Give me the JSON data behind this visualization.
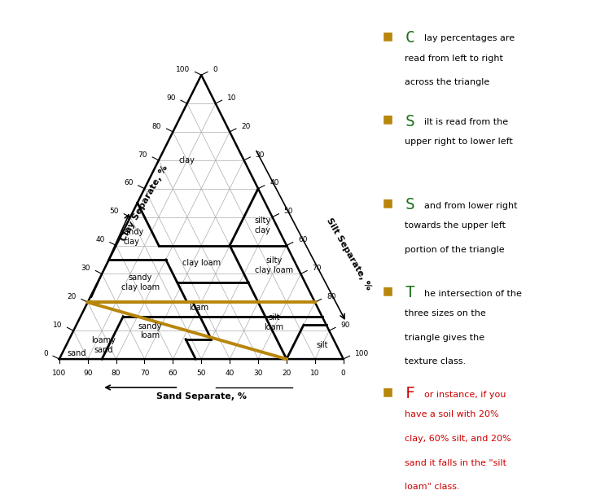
{
  "bg_color": "#ffffff",
  "grid_color": "#aaaaaa",
  "highlight_color": "#B8860B",
  "green_color": "#1a6e1a",
  "red_color": "#cc0000",
  "bullet_color": "#b8860b",
  "triangle_lw": 1.5,
  "grid_lw": 0.5,
  "boundary_lw": 2.0,
  "highlight_lw": 2.5,
  "texture_classes": [
    {
      "name": "clay",
      "clay": 70,
      "sand": 20,
      "fs": 7,
      "rot": 0
    },
    {
      "name": "silty\nclay",
      "clay": 47,
      "sand": 5,
      "fs": 7,
      "rot": 0
    },
    {
      "name": "sandy\nclay",
      "clay": 43,
      "sand": 53,
      "fs": 7,
      "rot": 0
    },
    {
      "name": "clay loam",
      "clay": 34,
      "sand": 33,
      "fs": 7,
      "rot": 0
    },
    {
      "name": "silty\nclay loam",
      "clay": 33,
      "sand": 8,
      "fs": 7,
      "rot": 0
    },
    {
      "name": "sandy\nclay loam",
      "clay": 27,
      "sand": 58,
      "fs": 7,
      "rot": 0
    },
    {
      "name": "loam",
      "clay": 18,
      "sand": 42,
      "fs": 7,
      "rot": 0
    },
    {
      "name": "silt\nloam",
      "clay": 13,
      "sand": 18,
      "fs": 7,
      "rot": 0
    },
    {
      "name": "sandy\nloam",
      "clay": 10,
      "sand": 63,
      "fs": 7,
      "rot": 0
    },
    {
      "name": "loamy\nsand",
      "clay": 5,
      "sand": 82,
      "fs": 7,
      "rot": 0
    },
    {
      "name": "sand",
      "clay": 2,
      "sand": 93,
      "fs": 7,
      "rot": 0
    },
    {
      "name": "silt",
      "clay": 5,
      "sand": 5,
      "fs": 7,
      "rot": 0
    }
  ],
  "usda_boundaries": [
    [
      [
        40,
        0
      ],
      [
        40,
        45
      ]
    ],
    [
      [
        40,
        45
      ],
      [
        55,
        45
      ]
    ],
    [
      [
        40,
        20
      ],
      [
        60,
        0
      ]
    ],
    [
      [
        27,
        20
      ],
      [
        40,
        20
      ]
    ],
    [
      [
        27,
        20
      ],
      [
        27,
        45
      ]
    ],
    [
      [
        27,
        45
      ],
      [
        35,
        45
      ]
    ],
    [
      [
        35,
        45
      ],
      [
        35,
        65
      ]
    ],
    [
      [
        20,
        45
      ],
      [
        20,
        80
      ]
    ],
    [
      [
        20,
        45
      ],
      [
        27,
        45
      ]
    ],
    [
      [
        12,
        0
      ],
      [
        12,
        8
      ]
    ],
    [
      [
        0,
        20
      ],
      [
        12,
        8
      ]
    ],
    [
      [
        0,
        20
      ],
      [
        27,
        20
      ]
    ],
    [
      [
        7,
        43
      ],
      [
        20,
        43
      ]
    ],
    [
      [
        7,
        43
      ],
      [
        7,
        52
      ]
    ],
    [
      [
        0,
        52
      ],
      [
        7,
        52
      ]
    ],
    [
      [
        15,
        0
      ],
      [
        15,
        70
      ]
    ],
    [
      [
        0,
        85
      ],
      [
        15,
        70
      ]
    ]
  ],
  "gold_lines": [
    [
      [
        20,
        0
      ],
      [
        20,
        80
      ]
    ],
    [
      [
        0,
        20
      ],
      [
        20,
        80
      ]
    ]
  ],
  "tick_values": [
    0,
    10,
    20,
    30,
    40,
    50,
    60,
    70,
    80,
    90,
    100
  ],
  "legend_items": [
    {
      "letter": "C",
      "rest": "lay percentages are\nread from left to right\nacross the triangle",
      "color": "#1a6e1a",
      "rest_color": "#000000"
    },
    {
      "letter": "S",
      "rest": "ilt is read from the\nupper right to lower left",
      "color": "#1a6e1a",
      "rest_color": "#000000"
    },
    {
      "letter": "S",
      "rest": "and from lower right\ntowards the upper left\nportion of the triangle",
      "color": "#1a6e1a",
      "rest_color": "#000000"
    },
    {
      "letter": "T",
      "rest": "he intersection of the\nthree sizes on the\ntriangle gives the\ntexture class.",
      "color": "#1a6e1a",
      "rest_color": "#000000"
    },
    {
      "letter": "F",
      "rest": "or instance, if you\nhave a soil with 20%\nclay, 60% silt, and 20%\nsand it falls in the \"silt\nloam\" class.",
      "color": "#cc0000",
      "rest_color": "#cc0000"
    }
  ]
}
